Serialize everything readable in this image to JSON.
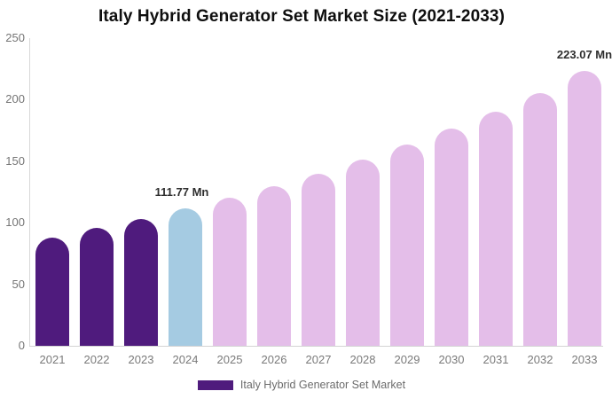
{
  "title": "Italy Hybrid Generator Set Market Size (2021-2033)",
  "chart_data": {
    "type": "bar",
    "title": "Italy Hybrid Generator Set Market Size (2021-2033)",
    "unit": "Mn",
    "categories": [
      "2021",
      "2022",
      "2023",
      "2024",
      "2025",
      "2026",
      "2027",
      "2028",
      "2029",
      "2030",
      "2031",
      "2032",
      "2033"
    ],
    "values": [
      88,
      96,
      103,
      111.77,
      120,
      129.5,
      140,
      151.5,
      163.5,
      176.5,
      190,
      205.5,
      223.07
    ],
    "segments": [
      "historical",
      "historical",
      "historical",
      "base_year",
      "forecast",
      "forecast",
      "forecast",
      "forecast",
      "forecast",
      "forecast",
      "forecast",
      "forecast",
      "forecast"
    ],
    "ylim": [
      0,
      250
    ],
    "yticks": [
      0,
      50,
      100,
      150,
      200,
      250
    ],
    "grid": false,
    "legend_position": "bottom",
    "annotations": [
      {
        "category": "2024",
        "label": "111.77 Mn"
      },
      {
        "category": "2033",
        "label": "223.07 Mn"
      }
    ]
  },
  "colors": {
    "historical": "#4F1B7D",
    "base_year": "#A5CBE2",
    "forecast": "#E4BEE9",
    "axis_line": "#D8D8D8",
    "tick_text": "#757575",
    "annotation_text": "#2E2E2E",
    "title_text": "#0F0F0F",
    "legend_text": "#6B6B6B"
  },
  "legend": {
    "label": "Italy Hybrid Generator Set Market",
    "swatch_color": "#4F1B7D"
  }
}
